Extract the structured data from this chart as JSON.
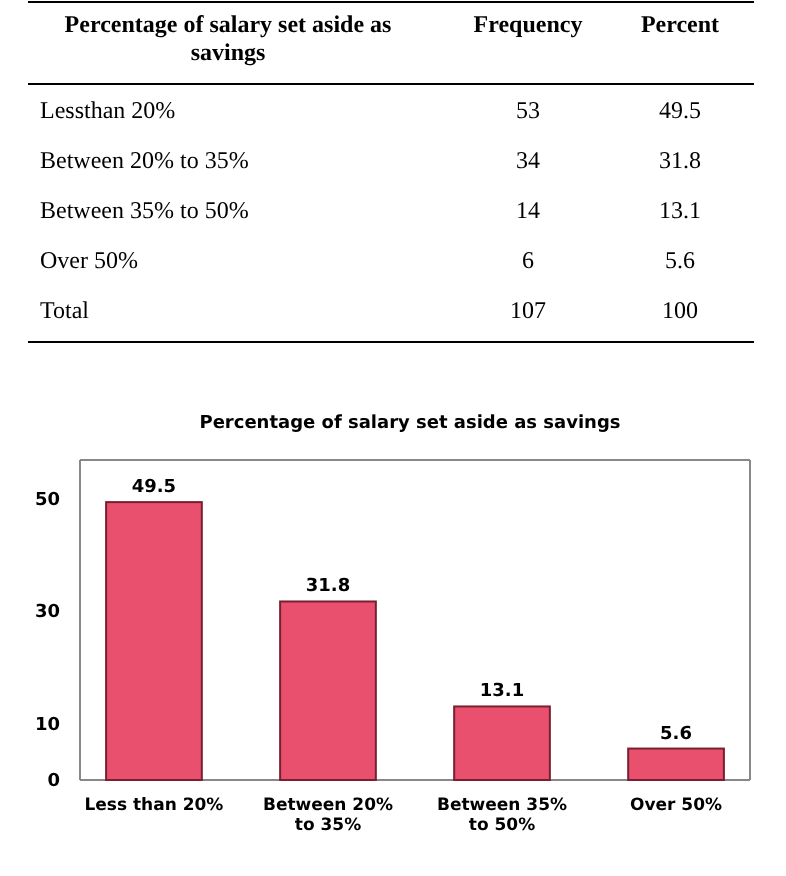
{
  "chart_data": [
    {
      "type": "other",
      "annotations": [
        "Percentage of salary set aside as savings",
        "Frequency",
        "Percent",
        "Lessthan 20%",
        "53",
        "49.5",
        "Between 20% to 35%",
        "34",
        "31.8",
        "Between 35% to 50%",
        "14",
        "13.1",
        "Over 50%",
        "6",
        "5.6",
        "Total",
        "107",
        "100"
      ]
    },
    {
      "type": "bar",
      "title": "Percentage of salary set aside as savings",
      "categories": [
        "Less than 20%",
        "Between 20% to 35%",
        "Between 35% to 50%",
        "Over 50%"
      ],
      "values": [
        49.5,
        31.8,
        13.1,
        5.6
      ],
      "color": "#e8506e",
      "ylim": [
        0,
        57
      ],
      "yticks": [
        0,
        10,
        30,
        50
      ],
      "grid": false,
      "data_labels": true
    }
  ]
}
